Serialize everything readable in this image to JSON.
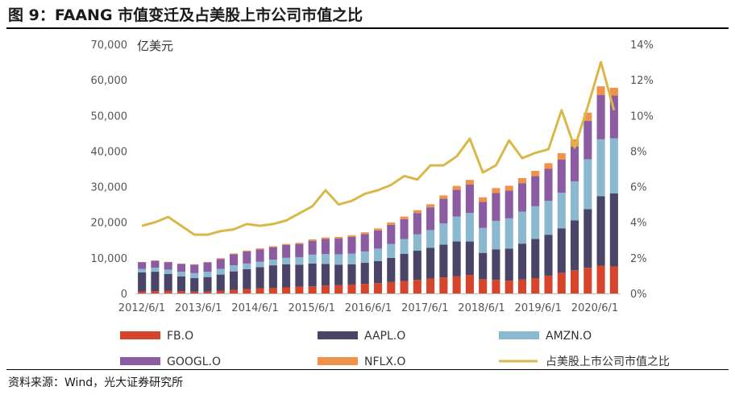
{
  "title": "图 9：FAANG 市值变迁及占美股上市公司市值之比",
  "source": "资料来源：Wind，光大证券研究所",
  "chart_data": {
    "type": "bar",
    "stacked": true,
    "unit_label": "亿美元",
    "ylim": [
      0,
      70000
    ],
    "y_ticks": [
      "0",
      "10,000",
      "20,000",
      "30,000",
      "40,000",
      "50,000",
      "60,000",
      "70,000"
    ],
    "y2lim": [
      0,
      14
    ],
    "y2_ticks": [
      "0%",
      "2%",
      "4%",
      "6%",
      "8%",
      "10%",
      "12%",
      "14%"
    ],
    "x_ticks": [
      "2012/6/1",
      "2013/6/1",
      "2014/6/1",
      "2015/6/1",
      "2016/6/1",
      "2017/6/1",
      "2018/6/1",
      "2019/6/1",
      "2020/6/1"
    ],
    "colors": {
      "FB.O": "#d6452b",
      "AAPL.O": "#4a4466",
      "AMZN.O": "#89b8cf",
      "GOOGL.O": "#8c5ca3",
      "NFLX.O": "#f0924a",
      "ratio": "#d9b84a"
    },
    "legend": [
      {
        "key": "FB.O",
        "label": "FB.O",
        "kind": "bar"
      },
      {
        "key": "AAPL.O",
        "label": "AAPL.O",
        "kind": "bar"
      },
      {
        "key": "AMZN.O",
        "label": "AMZN.O",
        "kind": "bar"
      },
      {
        "key": "GOOGL.O",
        "label": "GOOGL.O",
        "kind": "bar"
      },
      {
        "key": "NFLX.O",
        "label": "NFLX.O",
        "kind": "bar"
      },
      {
        "key": "ratio",
        "label": "占美股上市公司市值之比",
        "kind": "line"
      }
    ],
    "series": [
      {
        "name": "FB.O",
        "axis": "left",
        "values": [
          500,
          600,
          700,
          600,
          500,
          500,
          700,
          1000,
          1200,
          1400,
          1500,
          1700,
          1900,
          2000,
          2200,
          2300,
          2500,
          2700,
          2900,
          3200,
          3500,
          3800,
          4200,
          4500,
          4800,
          5200,
          4000,
          3800,
          3600,
          3900,
          4300,
          5000,
          5800,
          6500,
          7200,
          7800,
          7600
        ]
      },
      {
        "name": "AAPL.O",
        "axis": "left",
        "values": [
          5400,
          5500,
          4800,
          4200,
          3800,
          4100,
          4600,
          5200,
          5600,
          6000,
          6400,
          6500,
          6200,
          6400,
          6100,
          5800,
          5700,
          5900,
          6200,
          6800,
          7600,
          8200,
          8600,
          9200,
          9800,
          9400,
          7400,
          8600,
          9000,
          10100,
          11000,
          11500,
          12500,
          14000,
          16500,
          19500,
          20500
        ]
      },
      {
        "name": "AMZN.O",
        "axis": "left",
        "values": [
          1000,
          1100,
          1200,
          1300,
          1400,
          1500,
          1600,
          1700,
          1600,
          1500,
          1600,
          1800,
          2100,
          2500,
          2800,
          2900,
          3000,
          3200,
          3500,
          3900,
          4200,
          4600,
          5000,
          6000,
          7000,
          8000,
          7000,
          8000,
          8500,
          9000,
          9200,
          9500,
          10000,
          11000,
          14000,
          16000,
          15500
        ]
      },
      {
        "name": "GOOGL.O",
        "axis": "left",
        "values": [
          1900,
          2000,
          2100,
          2200,
          2400,
          2600,
          2800,
          3100,
          3400,
          3500,
          3500,
          3600,
          3700,
          3900,
          4200,
          4400,
          4700,
          4900,
          5100,
          5400,
          5600,
          6000,
          6400,
          6900,
          7500,
          8000,
          7300,
          7800,
          7800,
          8000,
          8500,
          9000,
          9300,
          9800,
          10800,
          12500,
          12000
        ]
      },
      {
        "name": "NFLX.O",
        "axis": "left",
        "values": [
          50,
          50,
          80,
          80,
          100,
          150,
          200,
          220,
          250,
          250,
          260,
          300,
          320,
          380,
          420,
          450,
          450,
          480,
          550,
          620,
          700,
          780,
          860,
          950,
          1100,
          1300,
          1300,
          1400,
          1350,
          1400,
          1450,
          1600,
          1800,
          2000,
          2300,
          2400,
          2200
        ]
      },
      {
        "name": "占美股上市公司市值之比",
        "axis": "right",
        "values": [
          3.8,
          4.0,
          4.3,
          3.8,
          3.3,
          3.3,
          3.5,
          3.6,
          3.9,
          3.8,
          3.9,
          4.1,
          4.5,
          4.9,
          5.8,
          5.0,
          5.2,
          5.6,
          5.8,
          6.1,
          6.6,
          6.4,
          7.2,
          7.2,
          7.7,
          8.7,
          6.8,
          7.2,
          8.6,
          7.6,
          7.9,
          8.1,
          10.3,
          8.2,
          10.5,
          13.0,
          10.3
        ]
      }
    ]
  }
}
